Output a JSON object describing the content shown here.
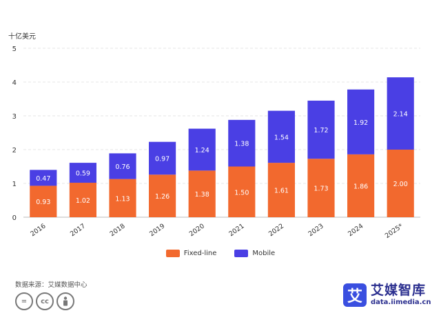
{
  "unit_label": "十亿美元",
  "legend": [
    {
      "label": "Fixed-line",
      "color": "#f2692e"
    },
    {
      "label": "Mobile",
      "color": "#4a3fe4"
    }
  ],
  "footer": {
    "source": "数据来源：艾媒数据中心",
    "cc_icons": [
      "equals-icon",
      "cc-icon",
      "person-icon"
    ],
    "brand_logo_char": "艾",
    "brand_name": "艾媒智库",
    "brand_url": "data.iimedia.cn"
  },
  "chart_data": {
    "type": "bar",
    "stacked": true,
    "categories": [
      "2016",
      "2017",
      "2018",
      "2019",
      "2020",
      "2021",
      "2022",
      "2023",
      "2024",
      "2025*"
    ],
    "series": [
      {
        "name": "Fixed-line",
        "color": "#f2692e",
        "values": [
          0.93,
          1.02,
          1.13,
          1.26,
          1.38,
          1.5,
          1.61,
          1.73,
          1.86,
          2.0
        ],
        "labels": [
          "0.93",
          "1.02",
          "1.13",
          "1.26",
          "1.38",
          "1.50",
          "1.61",
          "1.73",
          "1.86",
          "2.00"
        ]
      },
      {
        "name": "Mobile",
        "color": "#4a3fe4",
        "values": [
          0.47,
          0.59,
          0.76,
          0.97,
          1.24,
          1.38,
          1.54,
          1.72,
          1.92,
          2.14
        ],
        "labels": [
          "0.47",
          "0.59",
          "0.76",
          "0.97",
          "1.24",
          "1.38",
          "1.54",
          "1.72",
          "1.92",
          "2.14"
        ]
      }
    ],
    "ylim": [
      0,
      5
    ],
    "yticks": [
      "0",
      "1",
      "2",
      "3",
      "4",
      "5"
    ],
    "grid": true,
    "legend_position": "bottom"
  }
}
